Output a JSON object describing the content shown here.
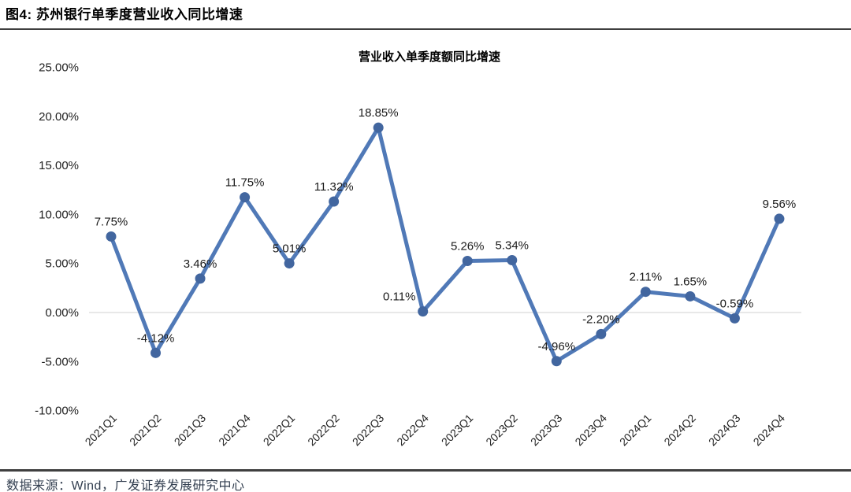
{
  "header": {
    "title": "图4:  苏州银行单季度营业收入同比增速"
  },
  "footer": {
    "source_text": "数据来源：Wind，广发证券发展研究中心"
  },
  "chart_data": {
    "type": "line",
    "title": "营业收入单季度额同比增速",
    "categories": [
      "2021Q1",
      "2021Q2",
      "2021Q3",
      "2021Q4",
      "2022Q1",
      "2022Q2",
      "2022Q3",
      "2022Q4",
      "2023Q1",
      "2023Q2",
      "2023Q3",
      "2023Q4",
      "2024Q1",
      "2024Q2",
      "2024Q3",
      "2024Q4"
    ],
    "values": [
      7.75,
      -4.12,
      3.46,
      11.75,
      5.01,
      11.32,
      18.85,
      0.11,
      5.26,
      5.34,
      -4.96,
      -2.2,
      2.11,
      1.65,
      -0.59,
      9.56
    ],
    "data_labels": [
      "7.75%",
      "-4.12%",
      "3.46%",
      "11.75%",
      "5.01%",
      "11.32%",
      "18.85%",
      "0.11%",
      "5.26%",
      "5.34%",
      "-4.96%",
      "-2.20%",
      "2.11%",
      "1.65%",
      "-0.59%",
      "9.56%"
    ],
    "ylabel": "",
    "xlabel": "",
    "ylim": [
      -10,
      25
    ],
    "ytick_step": 5,
    "ytick_labels": [
      "25.00%",
      "20.00%",
      "15.00%",
      "10.00%",
      "5.00%",
      "0.00%",
      "-5.00%",
      "-10.00%"
    ],
    "legend": "none",
    "grid": "zero-line-only",
    "colors": {
      "line": "#5079b7",
      "marker": "#42669f",
      "zero_line": "#d9d9d9",
      "axis_text": "#1f1f1f",
      "label_text": "#1a1a1a",
      "title_text": "#000000"
    }
  }
}
